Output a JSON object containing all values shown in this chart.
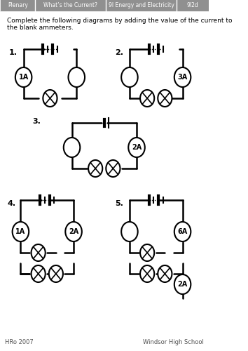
{
  "header_tabs": [
    "Plenary",
    "What’s the Current?",
    "9I Energy and Electricity",
    "9I2d"
  ],
  "instruction": "Complete the following diagrams by adding the value of the current to\nthe blank ammeters.",
  "footer_left": "HRo 2007",
  "footer_right": "Windsor High School",
  "bg_color": "#ffffff",
  "header_bg": "#a0a0a0",
  "header_text_color": "#ffffff",
  "tab_divider_color": "#ffffff"
}
